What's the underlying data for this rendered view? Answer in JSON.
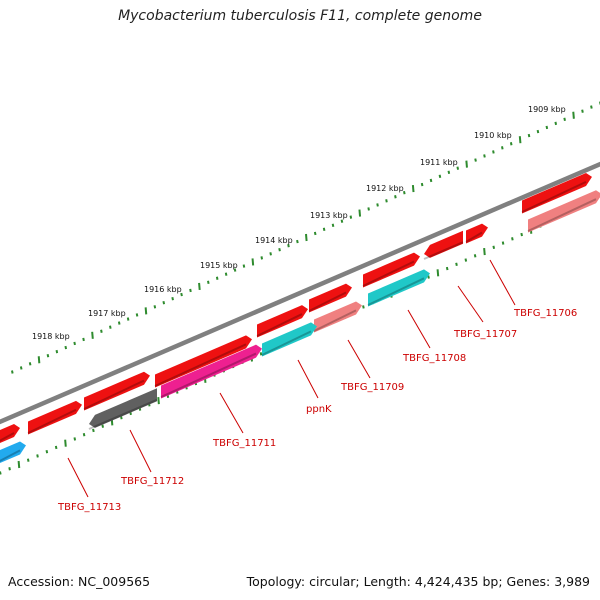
{
  "title": "Mycobacterium tuberculosis F11, complete genome",
  "accession": "Accession: NC_009565",
  "topology": "Topology: circular; Length: 4,424,435 bp; Genes: 3,989",
  "colors": {
    "backbone": "#808080",
    "tick": "#2e8b2e",
    "gene_label": "#cc0000",
    "red": "#ee1111",
    "pink": "#f08080",
    "cyan": "#20c8c8",
    "magenta": "#ee2090",
    "gray": "#606060",
    "blue": "#22aaee"
  },
  "kbp_labels": [
    "1909 kbp",
    "1910 kbp",
    "1911 kbp",
    "1912 kbp",
    "1913 kbp",
    "1914 kbp",
    "1915 kbp",
    "1916 kbp",
    "1917 kbp",
    "1918 kbp"
  ],
  "gene_labels": [
    "TBFG_11706",
    "TBFG_11707",
    "TBFG_11708",
    "TBFG_11709",
    "ppnK",
    "TBFG_11711",
    "TBFG_11712",
    "TBFG_11713"
  ],
  "genes": [
    {
      "strand": "forward",
      "color": "red",
      "direction": "right"
    },
    {
      "strand": "forward",
      "color": "red",
      "direction": "right"
    },
    {
      "strand": "forward",
      "color": "red",
      "direction": "right"
    },
    {
      "strand": "forward",
      "color": "red",
      "direction": "right"
    },
    {
      "strand": "forward",
      "color": "red",
      "direction": "right"
    },
    {
      "strand": "forward",
      "color": "red",
      "direction": "right"
    },
    {
      "strand": "forward",
      "color": "red",
      "direction": "right"
    },
    {
      "strand": "forward",
      "color": "red",
      "direction": "left"
    },
    {
      "strand": "forward",
      "color": "red",
      "direction": "right"
    },
    {
      "strand": "forward",
      "color": "red",
      "direction": "right"
    },
    {
      "strand": "reverse",
      "color": "pink",
      "direction": "right"
    },
    {
      "strand": "reverse",
      "color": "cyan",
      "direction": "right"
    },
    {
      "strand": "reverse",
      "color": "pink",
      "direction": "right"
    },
    {
      "strand": "reverse",
      "color": "cyan",
      "direction": "right"
    },
    {
      "strand": "reverse",
      "color": "magenta",
      "direction": "right"
    },
    {
      "strand": "reverse",
      "color": "gray",
      "direction": "left"
    },
    {
      "strand": "reverse",
      "color": "blue",
      "direction": "right"
    }
  ]
}
